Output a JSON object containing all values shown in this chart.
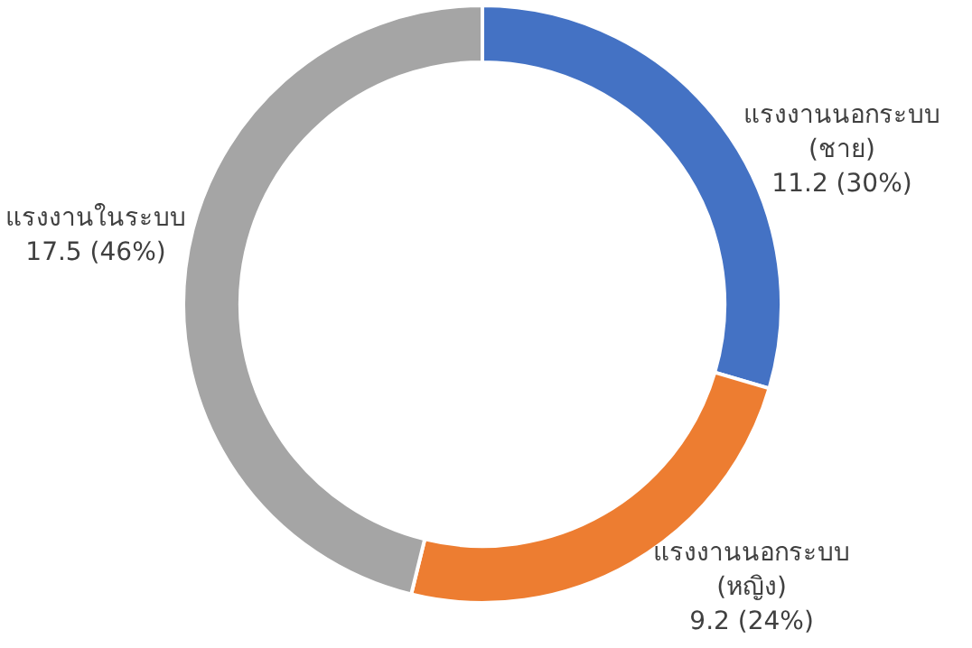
{
  "chart_data": {
    "type": "donut",
    "categories": [
      "แรงงานนอกระบบ (ชาย)",
      "แรงงานนอกระบบ (หญิง)",
      "แรงงานในระบบ"
    ],
    "values": [
      11.2,
      9.2,
      17.5
    ],
    "value_labels": [
      "11.2 (30%)",
      "9.2 (24%)",
      "17.5 (46%)"
    ],
    "colors": [
      "#4472c4",
      "#ed7d31",
      "#a5a5a5"
    ],
    "legend": false
  }
}
